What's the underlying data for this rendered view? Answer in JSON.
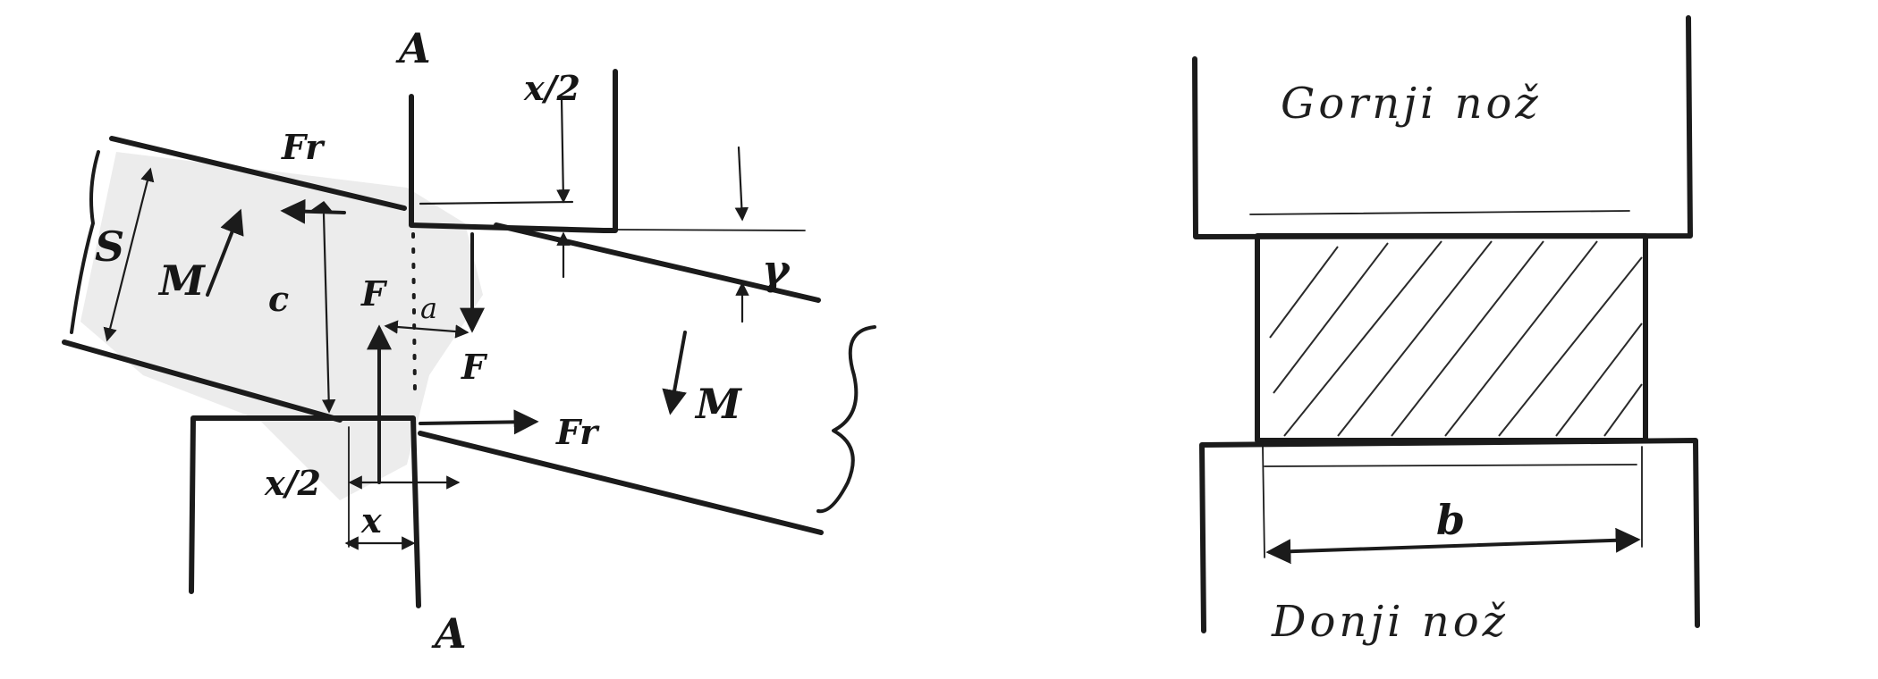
{
  "left_sketch": {
    "section_label_top": "A",
    "section_label_bottom": "A",
    "force_fr_top": "Fr",
    "force_fr_bottom": "Fr",
    "thickness_label": "S",
    "moment_left": "M",
    "moment_right": "M",
    "distance_c": "c",
    "force_f_upper": "F",
    "force_f_lower": "F",
    "distance_a": "a",
    "half_x_top": "x/2",
    "half_x_bottom": "x/2",
    "distance_x": "x",
    "angle_label": "γ"
  },
  "right_sketch": {
    "upper_knife": "Gornji nož",
    "lower_knife": "Donji nož",
    "width_label": "b"
  },
  "colors": {
    "ink": "#1b1b1b",
    "paper": "#ffffff"
  }
}
